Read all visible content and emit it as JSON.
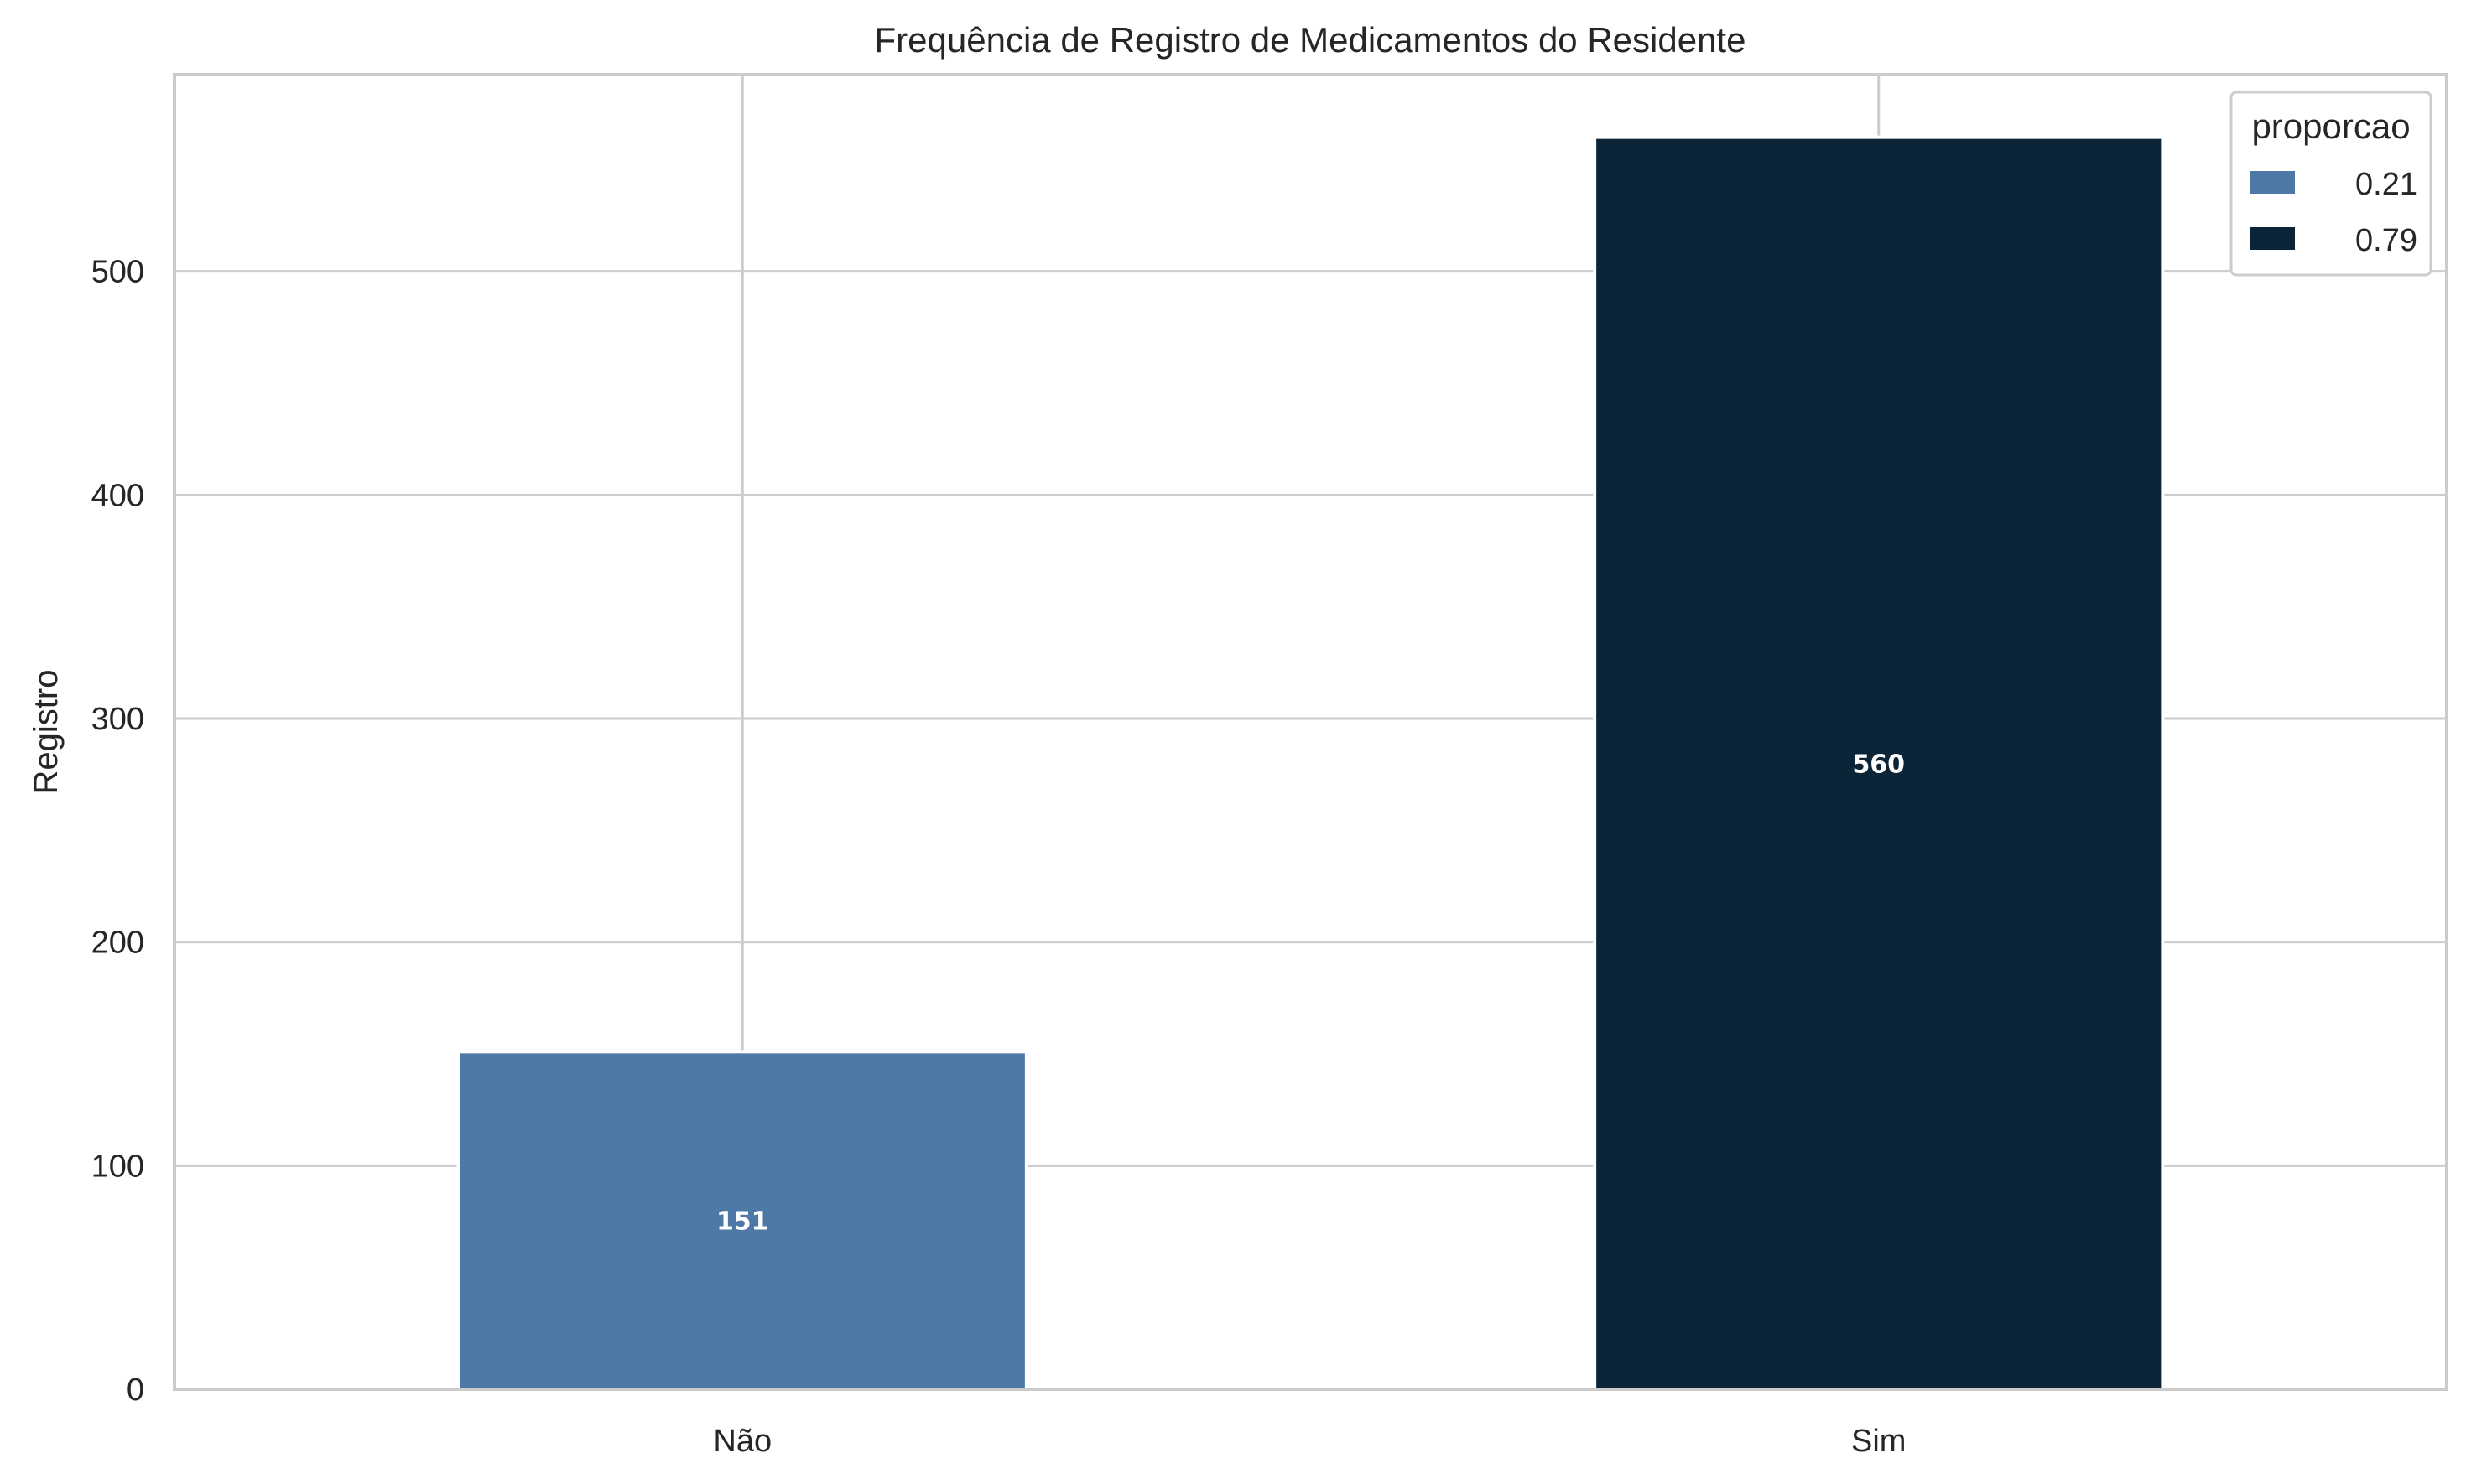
{
  "chart_data": {
    "type": "bar",
    "title": "Frequência de Registro de Medicamentos do Residente",
    "xlabel": "",
    "ylabel": "Registro",
    "categories": [
      "Não",
      "Sim"
    ],
    "values": [
      151,
      560
    ],
    "data_labels": [
      "151",
      "560"
    ],
    "ylim": [
      0,
      588
    ],
    "yticks": [
      0,
      100,
      200,
      300,
      400,
      500
    ],
    "grid": true,
    "legend": {
      "title": "proporcao",
      "placement": "top-right",
      "entries": [
        {
          "label": "0.21",
          "color": "#4e79a7"
        },
        {
          "label": "0.79",
          "color": "#0b2437"
        }
      ]
    },
    "colors": [
      "#4e79a7",
      "#0b2437"
    ]
  }
}
